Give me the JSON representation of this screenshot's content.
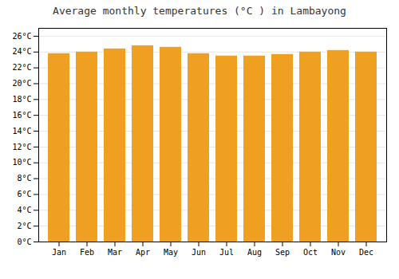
{
  "chart_data": {
    "type": "bar",
    "title": "Average monthly temperatures (°C ) in Lambayong",
    "categories": [
      "Jan",
      "Feb",
      "Mar",
      "Apr",
      "May",
      "Jun",
      "Jul",
      "Aug",
      "Sep",
      "Oct",
      "Nov",
      "Dec"
    ],
    "values": [
      23.8,
      24.0,
      24.4,
      24.8,
      24.6,
      23.8,
      23.5,
      23.5,
      23.7,
      24.0,
      24.2,
      24.0
    ],
    "color": "#F0A020",
    "ylim": [
      0,
      27
    ],
    "yticks": [
      {
        "value": 0,
        "label": "0°C"
      },
      {
        "value": 2,
        "label": "2°C"
      },
      {
        "value": 4,
        "label": "4°C"
      },
      {
        "value": 6,
        "label": "6°C"
      },
      {
        "value": 8,
        "label": "8°C"
      },
      {
        "value": 10,
        "label": "10°C"
      },
      {
        "value": 12,
        "label": "12°C"
      },
      {
        "value": 14,
        "label": "14°C"
      },
      {
        "value": 16,
        "label": "16°C"
      },
      {
        "value": 18,
        "label": "18°C"
      },
      {
        "value": 20,
        "label": "20°C"
      },
      {
        "value": 22,
        "label": "22°C"
      },
      {
        "value": 24,
        "label": "24°C"
      },
      {
        "value": 26,
        "label": "26°C"
      }
    ],
    "grid": true
  }
}
